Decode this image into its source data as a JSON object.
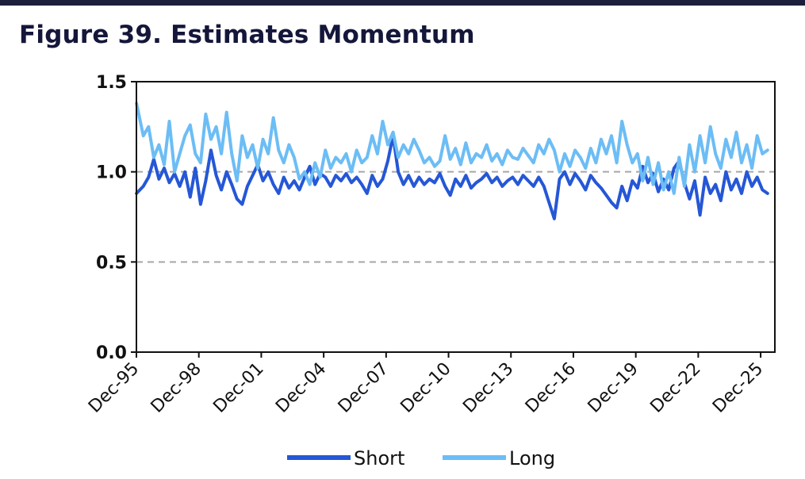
{
  "figure_title": "Figure 39. Estimates Momentum",
  "chart_data": {
    "type": "line",
    "title": "Figure 39. Estimates Momentum",
    "xlabel": "",
    "ylabel": "",
    "ylim": [
      0,
      1.5
    ],
    "yticks": [
      "0.0",
      "0.5",
      "1.0",
      "1.5"
    ],
    "xlim": [
      1995.917,
      2026.6
    ],
    "xticks": [
      "Dec-95",
      "Dec-98",
      "Dec-01",
      "Dec-04",
      "Dec-07",
      "Dec-10",
      "Dec-13",
      "Dec-16",
      "Dec-19",
      "Dec-22",
      "Dec-25"
    ],
    "xtick_years": [
      1995.917,
      1998.917,
      2001.917,
      2004.917,
      2007.917,
      2010.917,
      2013.917,
      2016.917,
      2019.917,
      2022.917,
      2025.917
    ],
    "grid": "horizontal dashed at 0.5 and 1.0",
    "legend_position": "bottom",
    "series": [
      {
        "name": "Short",
        "color": "#2557d6",
        "x": [
          1995.92,
          1996.25,
          1996.5,
          1996.75,
          1997.0,
          1997.25,
          1997.5,
          1997.75,
          1998.0,
          1998.25,
          1998.5,
          1998.75,
          1999.0,
          1999.25,
          1999.5,
          1999.75,
          2000.0,
          2000.25,
          2000.5,
          2000.75,
          2001.0,
          2001.25,
          2001.5,
          2001.75,
          2002.0,
          2002.25,
          2002.5,
          2002.75,
          2003.0,
          2003.25,
          2003.5,
          2003.75,
          2004.0,
          2004.25,
          2004.5,
          2004.75,
          2005.0,
          2005.25,
          2005.5,
          2005.75,
          2006.0,
          2006.25,
          2006.5,
          2006.75,
          2007.0,
          2007.25,
          2007.5,
          2007.75,
          2008.0,
          2008.25,
          2008.5,
          2008.75,
          2009.0,
          2009.25,
          2009.5,
          2009.75,
          2010.0,
          2010.25,
          2010.5,
          2010.75,
          2011.0,
          2011.25,
          2011.5,
          2011.75,
          2012.0,
          2012.25,
          2012.5,
          2012.75,
          2013.0,
          2013.25,
          2013.5,
          2013.75,
          2014.0,
          2014.25,
          2014.5,
          2014.75,
          2015.0,
          2015.25,
          2015.5,
          2015.75,
          2016.0,
          2016.25,
          2016.5,
          2016.75,
          2017.0,
          2017.25,
          2017.5,
          2017.75,
          2018.0,
          2018.25,
          2018.5,
          2018.75,
          2019.0,
          2019.25,
          2019.5,
          2019.75,
          2020.0,
          2020.25,
          2020.5,
          2020.75,
          2021.0,
          2021.25,
          2021.5,
          2021.75,
          2022.0,
          2022.25,
          2022.5,
          2022.75,
          2023.0,
          2023.25,
          2023.5,
          2023.75,
          2024.0,
          2024.25,
          2024.5,
          2024.75,
          2025.0,
          2025.25,
          2025.5,
          2025.75,
          2026.0,
          2026.25
        ],
        "values": [
          0.88,
          0.92,
          0.97,
          1.07,
          0.96,
          1.02,
          0.94,
          0.99,
          0.92,
          1.0,
          0.86,
          1.02,
          0.82,
          0.95,
          1.12,
          0.98,
          0.9,
          1.0,
          0.93,
          0.85,
          0.82,
          0.92,
          0.98,
          1.04,
          0.95,
          1.0,
          0.93,
          0.88,
          0.97,
          0.91,
          0.95,
          0.9,
          0.97,
          1.03,
          0.93,
          0.99,
          0.97,
          0.92,
          0.98,
          0.95,
          0.99,
          0.94,
          0.97,
          0.93,
          0.88,
          0.98,
          0.92,
          0.96,
          1.06,
          1.2,
          1.0,
          0.93,
          0.98,
          0.92,
          0.97,
          0.93,
          0.96,
          0.94,
          0.99,
          0.92,
          0.87,
          0.96,
          0.92,
          0.98,
          0.91,
          0.94,
          0.96,
          0.99,
          0.94,
          0.97,
          0.92,
          0.95,
          0.97,
          0.93,
          0.98,
          0.95,
          0.92,
          0.97,
          0.92,
          0.83,
          0.74,
          0.96,
          1.0,
          0.93,
          0.99,
          0.95,
          0.9,
          0.98,
          0.94,
          0.91,
          0.87,
          0.83,
          0.8,
          0.92,
          0.84,
          0.95,
          0.91,
          1.03,
          0.94,
          0.99,
          0.89,
          0.96,
          0.9,
          1.02,
          1.06,
          0.94,
          0.85,
          0.95,
          0.76,
          0.97,
          0.88,
          0.93,
          0.84,
          1.0,
          0.9,
          0.96,
          0.88,
          1.0,
          0.92,
          0.97,
          0.9,
          0.88
        ]
      },
      {
        "name": "Long",
        "color": "#6cbdf5",
        "x": [
          1995.92,
          1996.25,
          1996.5,
          1996.75,
          1997.0,
          1997.25,
          1997.5,
          1997.75,
          1998.0,
          1998.25,
          1998.5,
          1998.75,
          1999.0,
          1999.25,
          1999.5,
          1999.75,
          2000.0,
          2000.25,
          2000.5,
          2000.75,
          2001.0,
          2001.25,
          2001.5,
          2001.75,
          2002.0,
          2002.25,
          2002.5,
          2002.75,
          2003.0,
          2003.25,
          2003.5,
          2003.75,
          2004.0,
          2004.25,
          2004.5,
          2004.75,
          2005.0,
          2005.25,
          2005.5,
          2005.75,
          2006.0,
          2006.25,
          2006.5,
          2006.75,
          2007.0,
          2007.25,
          2007.5,
          2007.75,
          2008.0,
          2008.25,
          2008.5,
          2008.75,
          2009.0,
          2009.25,
          2009.5,
          2009.75,
          2010.0,
          2010.25,
          2010.5,
          2010.75,
          2011.0,
          2011.25,
          2011.5,
          2011.75,
          2012.0,
          2012.25,
          2012.5,
          2012.75,
          2013.0,
          2013.25,
          2013.5,
          2013.75,
          2014.0,
          2014.25,
          2014.5,
          2014.75,
          2015.0,
          2015.25,
          2015.5,
          2015.75,
          2016.0,
          2016.25,
          2016.5,
          2016.75,
          2017.0,
          2017.25,
          2017.5,
          2017.75,
          2018.0,
          2018.25,
          2018.5,
          2018.75,
          2019.0,
          2019.25,
          2019.5,
          2019.75,
          2020.0,
          2020.25,
          2020.5,
          2020.75,
          2021.0,
          2021.25,
          2021.5,
          2021.75,
          2022.0,
          2022.25,
          2022.5,
          2022.75,
          2023.0,
          2023.25,
          2023.5,
          2023.75,
          2024.0,
          2024.25,
          2024.5,
          2024.75,
          2025.0,
          2025.25,
          2025.5,
          2025.75,
          2026.0,
          2026.25
        ],
        "values": [
          1.38,
          1.2,
          1.25,
          1.08,
          1.15,
          1.04,
          1.28,
          1.0,
          1.1,
          1.2,
          1.26,
          1.1,
          1.05,
          1.32,
          1.18,
          1.25,
          1.1,
          1.33,
          1.1,
          0.95,
          1.2,
          1.08,
          1.15,
          1.02,
          1.18,
          1.1,
          1.3,
          1.12,
          1.05,
          1.15,
          1.08,
          0.96,
          1.0,
          0.93,
          1.05,
          0.97,
          1.12,
          1.02,
          1.08,
          1.05,
          1.1,
          1.0,
          1.12,
          1.05,
          1.08,
          1.2,
          1.1,
          1.28,
          1.15,
          1.22,
          1.08,
          1.15,
          1.1,
          1.18,
          1.12,
          1.05,
          1.08,
          1.03,
          1.06,
          1.2,
          1.07,
          1.13,
          1.04,
          1.16,
          1.05,
          1.1,
          1.08,
          1.15,
          1.06,
          1.1,
          1.04,
          1.12,
          1.08,
          1.07,
          1.13,
          1.09,
          1.05,
          1.15,
          1.1,
          1.18,
          1.12,
          1.0,
          1.1,
          1.03,
          1.12,
          1.08,
          1.02,
          1.13,
          1.05,
          1.18,
          1.1,
          1.2,
          1.05,
          1.28,
          1.15,
          1.05,
          1.1,
          0.95,
          1.08,
          0.93,
          1.05,
          0.9,
          1.0,
          0.88,
          1.08,
          0.92,
          1.15,
          1.0,
          1.2,
          1.05,
          1.25,
          1.1,
          1.02,
          1.18,
          1.08,
          1.22,
          1.05,
          1.15,
          1.02,
          1.2,
          1.1,
          1.12
        ]
      }
    ]
  }
}
